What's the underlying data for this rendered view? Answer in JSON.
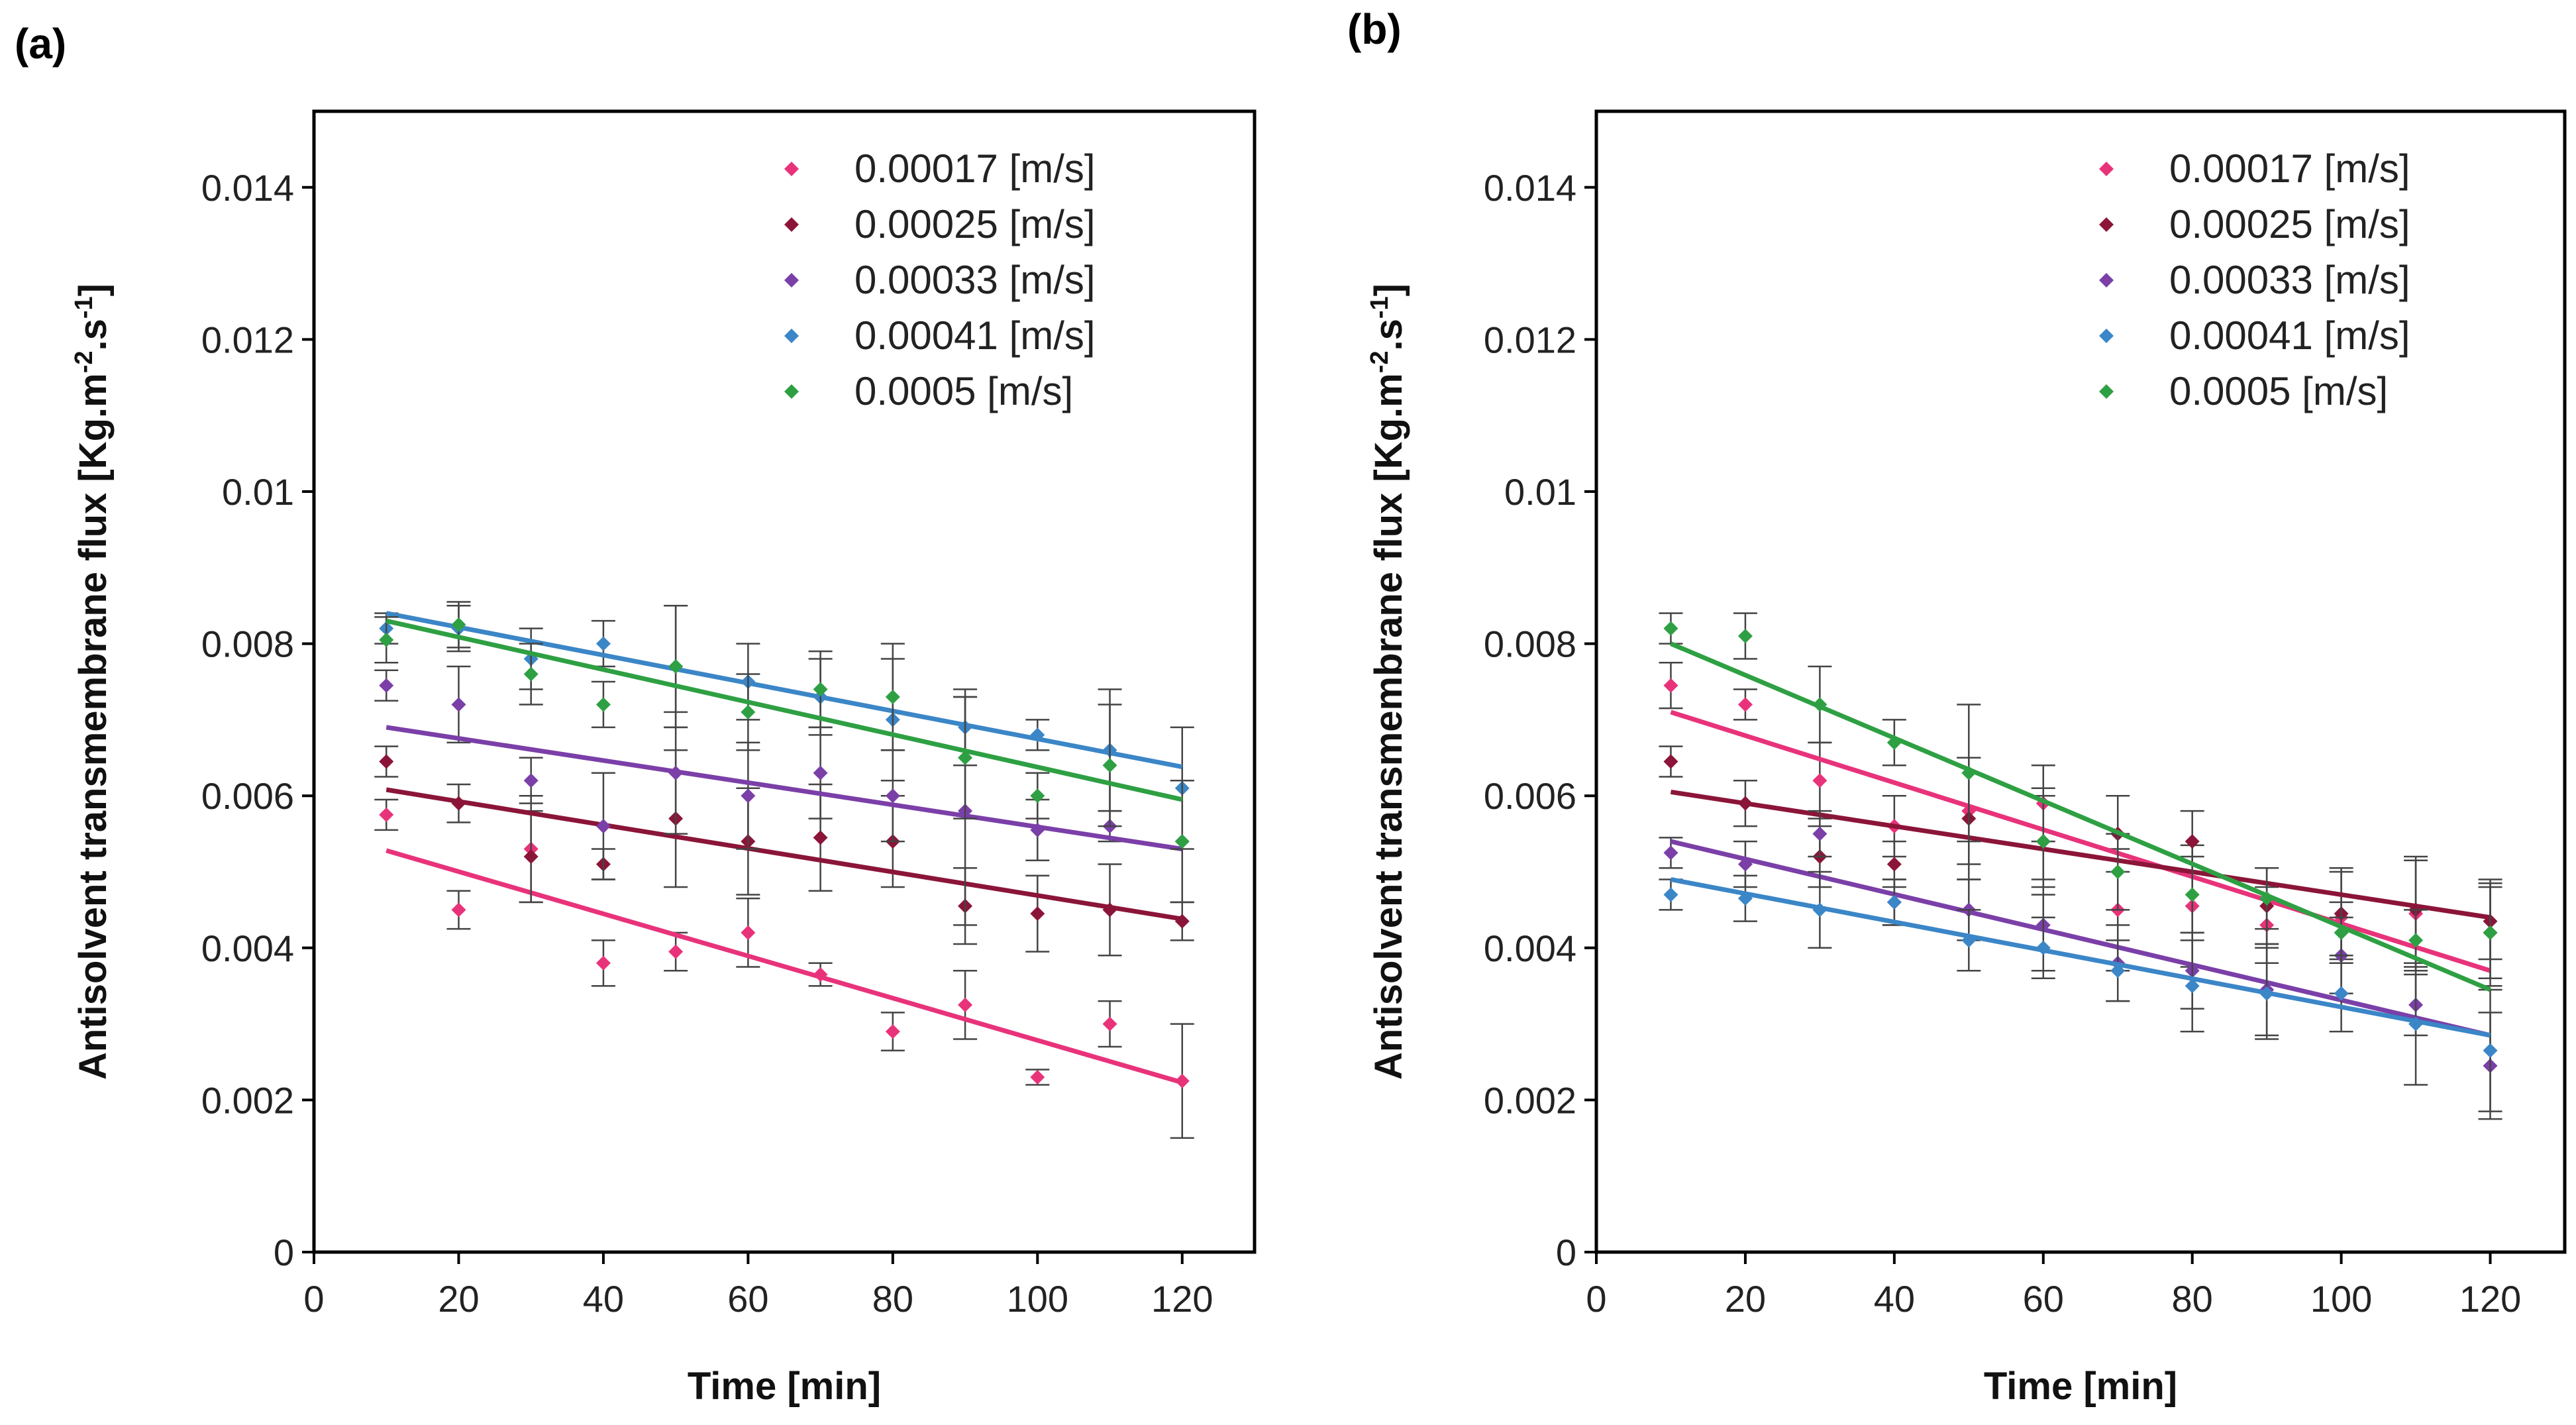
{
  "chart_data": [
    {
      "panel_label": "(a)",
      "type": "scatter",
      "xlabel": "Time [min]",
      "ylabel": "Antisolvent transmembrane flux [Kg.m-2.s-1]",
      "ylabel_main": "Antisolvent transmembrane flux [Kg.m",
      "ylabel_sup1": "-2",
      "ylabel_mid": ".s",
      "ylabel_sup2": "-1",
      "ylabel_end": "]",
      "xlim": [
        0,
        130
      ],
      "ylim": [
        0,
        0.015
      ],
      "xticks": [
        "0",
        "20",
        "40",
        "60",
        "80",
        "100",
        "120"
      ],
      "yticks": [
        "0",
        "0.002",
        "0.004",
        "0.006",
        "0.008",
        "0.01",
        "0.012",
        "0.014"
      ],
      "legend_position": "top-right",
      "x": [
        10,
        20,
        30,
        40,
        50,
        60,
        70,
        80,
        90,
        100,
        110,
        120
      ],
      "series": [
        {
          "name": "0.00017 [m/s]",
          "color": "#e8337a",
          "values": [
            0.00575,
            0.0045,
            0.0053,
            0.0038,
            0.00395,
            0.0042,
            0.00365,
            0.0029,
            0.00325,
            0.0023,
            0.003,
            0.00225
          ],
          "errors": [
            0.0002,
            0.00025,
            0.0007,
            0.0003,
            0.00025,
            0.00045,
            0.00015,
            0.00025,
            0.00045,
            0.0001,
            0.0003,
            0.00075
          ],
          "fit": [
            0.00528,
            0.00223
          ]
        },
        {
          "name": "0.00025 [m/s]",
          "color": "#8b1538",
          "values": [
            0.00645,
            0.0059,
            0.0052,
            0.0051,
            0.0057,
            0.0054,
            0.00545,
            0.0054,
            0.00455,
            0.00445,
            0.0045,
            0.00435
          ],
          "errors": [
            0.0002,
            0.00025,
            0.0006,
            0.0002,
            0.0009,
            0.0007,
            0.0007,
            0.0006,
            0.0005,
            0.0005,
            0.0006,
            0.00025
          ],
          "fit": [
            0.00608,
            0.00438
          ]
        },
        {
          "name": "0.00033 [m/s]",
          "color": "#7b3fa8",
          "values": [
            0.00745,
            0.0072,
            0.0062,
            0.0056,
            0.0063,
            0.006,
            0.0063,
            0.006,
            0.0058,
            0.00555,
            0.0056,
            0.0054
          ],
          "errors": [
            0.0002,
            0.0005,
            0.0003,
            0.0007,
            0.0008,
            0.0007,
            0.0006,
            0.0006,
            0.0015,
            0.0004,
            0.0002,
            0.0008
          ],
          "fit": [
            0.0069,
            0.0053
          ]
        },
        {
          "name": "0.00041 [m/s]",
          "color": "#3b86c7",
          "values": [
            0.0082,
            0.0082,
            0.0078,
            0.008,
            0.0077,
            0.0075,
            0.0073,
            0.007,
            0.0069,
            0.0068,
            0.0066,
            0.0061
          ],
          "errors": [
            0.0002,
            0.0003,
            0.0004,
            0.0003,
            0.0008,
            0.0005,
            0.0005,
            0.0008,
            0.0005,
            0.0002,
            0.0008,
            0.0008
          ],
          "fit": [
            0.0084,
            0.00638
          ]
        },
        {
          "name": "0.0005 [m/s]",
          "color": "#2ea043",
          "values": [
            0.00805,
            0.00825,
            0.0076,
            0.0072,
            0.0077,
            0.0071,
            0.0074,
            0.0073,
            0.0065,
            0.006,
            0.0064,
            0.0054
          ],
          "errors": [
            0.0003,
            0.0003,
            0.0004,
            0.0003,
            0.0008,
            0.0005,
            0.0005,
            0.0007,
            0.0008,
            0.0003,
            0.0008,
            0.0008
          ],
          "fit": [
            0.0083,
            0.00595
          ]
        }
      ]
    },
    {
      "panel_label": "(b)",
      "type": "scatter",
      "xlabel": "Time [min]",
      "ylabel": "Antisolvent transmembrane flux [Kg.m-2.s-1]",
      "ylabel_main": "Antisolvent transmembrane flux [Kg.m",
      "ylabel_sup1": "-2",
      "ylabel_mid": ".s",
      "ylabel_sup2": "-1",
      "ylabel_end": "]",
      "xlim": [
        0,
        130
      ],
      "ylim": [
        0,
        0.015
      ],
      "xticks": [
        "0",
        "20",
        "40",
        "60",
        "80",
        "100",
        "120"
      ],
      "yticks": [
        "0",
        "0.002",
        "0.004",
        "0.006",
        "0.008",
        "0.01",
        "0.012",
        "0.014"
      ],
      "legend_position": "top-right",
      "x": [
        10,
        20,
        30,
        40,
        50,
        60,
        70,
        80,
        90,
        100,
        110,
        120
      ],
      "series": [
        {
          "name": "0.00017 [m/s]",
          "color": "#e8337a",
          "values": [
            0.00745,
            0.0072,
            0.0062,
            0.0056,
            0.0058,
            0.0059,
            0.0045,
            0.00455,
            0.0043,
            0.0044,
            0.00445,
            0.0042
          ],
          "errors": [
            0.0003,
            0.0002,
            0.0005,
            0.0004,
            0.0007,
            0.0005,
            0.0008,
            0.0008,
            0.0005,
            0.0006,
            0.0007,
            0.0006
          ],
          "fit": [
            0.0071,
            0.0037
          ]
        },
        {
          "name": "0.00025 [m/s]",
          "color": "#8b1538",
          "values": [
            0.00645,
            0.0059,
            0.0052,
            0.0051,
            0.0057,
            0.0054,
            0.0055,
            0.0054,
            0.00455,
            0.00445,
            0.0045,
            0.00435
          ],
          "errors": [
            0.0002,
            0.0003,
            0.0004,
            0.0003,
            0.0008,
            0.0007,
            0.0005,
            0.0004,
            0.0005,
            0.0006,
            0.0007,
            0.0005
          ],
          "fit": [
            0.00605,
            0.0044
          ]
        },
        {
          "name": "0.00033 [m/s]",
          "color": "#7b3fa8",
          "values": [
            0.00525,
            0.0051,
            0.0055,
            0.0046,
            0.0045,
            0.0043,
            0.0038,
            0.0037,
            0.00345,
            0.0039,
            0.00325,
            0.00245
          ],
          "errors": [
            0.0002,
            0.0003,
            0.0003,
            0.0003,
            0.0004,
            0.0006,
            0.0005,
            0.0005,
            0.0006,
            0.0005,
            0.0004,
            0.0007
          ],
          "fit": [
            0.0054,
            0.00285
          ]
        },
        {
          "name": "0.00041 [m/s]",
          "color": "#3b86c7",
          "values": [
            0.0047,
            0.00465,
            0.0045,
            0.0046,
            0.0041,
            0.004,
            0.0037,
            0.0035,
            0.0034,
            0.0034,
            0.003,
            0.00265
          ],
          "errors": [
            0.0002,
            0.0003,
            0.0005,
            0.0003,
            0.0004,
            0.0004,
            0.0004,
            0.0006,
            0.0006,
            0.0005,
            0.0008,
            0.0008
          ],
          "fit": [
            0.0049,
            0.00285
          ]
        },
        {
          "name": "0.0005 [m/s]",
          "color": "#2ea043",
          "values": [
            0.0082,
            0.0081,
            0.0072,
            0.0067,
            0.0063,
            0.0054,
            0.005,
            0.0047,
            0.00465,
            0.0042,
            0.0041,
            0.0042
          ],
          "errors": [
            0.0002,
            0.0003,
            0.0005,
            0.0003,
            0.0009,
            0.0006,
            0.0005,
            0.0005,
            0.0004,
            0.0004,
            0.0004,
            0.0007
          ],
          "fit": [
            0.008,
            0.00345
          ]
        }
      ]
    }
  ]
}
